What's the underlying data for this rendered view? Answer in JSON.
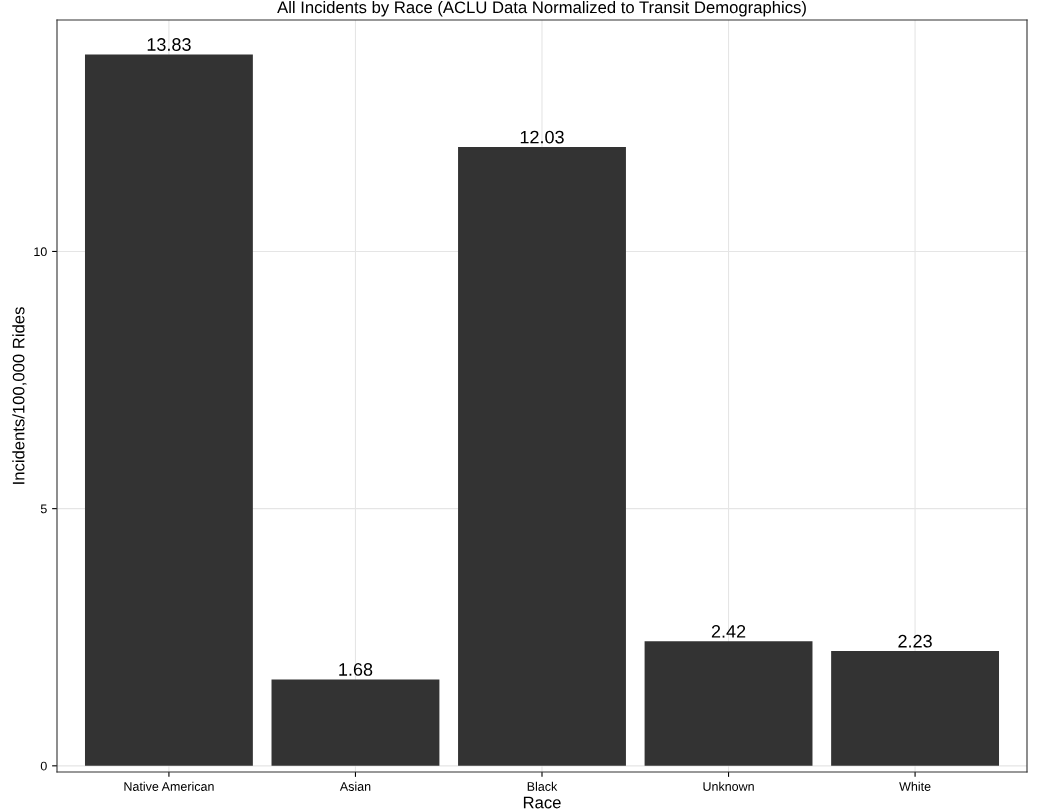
{
  "chart_data": {
    "type": "bar",
    "title": "All Incidents by Race (ACLU Data Normalized to Transit Demographics)",
    "xlabel": "Race",
    "ylabel": "Incidents/100,000 Rides",
    "categories": [
      "Native American",
      "Asian",
      "Black",
      "Unknown",
      "White"
    ],
    "values": [
      13.83,
      1.68,
      12.03,
      2.42,
      2.23
    ],
    "color": "#333333",
    "data_labels": true,
    "ylim": [
      -0.12,
      14.5
    ],
    "yticks": [
      0,
      5,
      10
    ],
    "grid": true
  }
}
